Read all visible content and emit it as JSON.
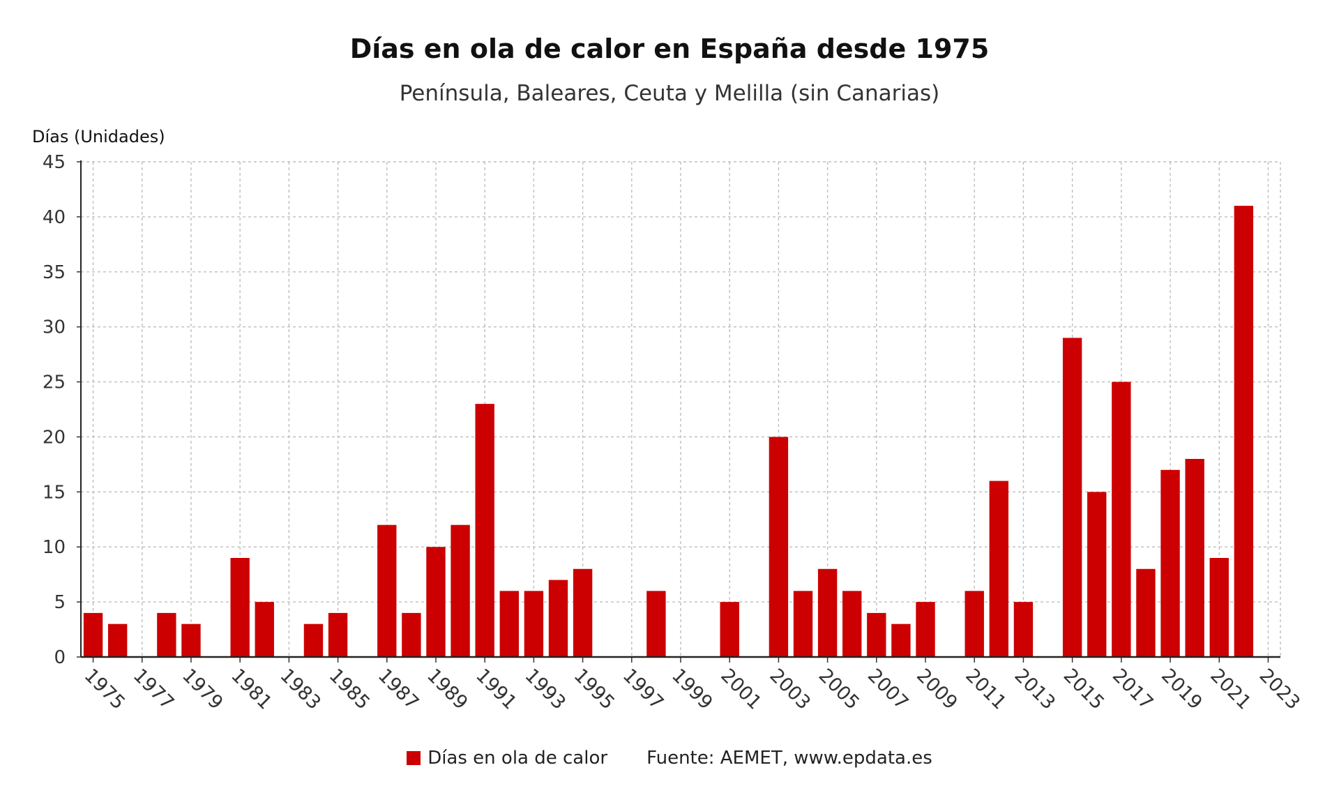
{
  "chart_data": {
    "type": "bar",
    "title": "Días en ola de calor en España desde 1975",
    "subtitle": "Península, Baleares, Ceuta y Melilla (sin Canarias)",
    "ylabel": "Días (Unidades)",
    "xlabel": "",
    "ylim": [
      0,
      45
    ],
    "yticks": [
      0,
      5,
      10,
      15,
      20,
      25,
      30,
      35,
      40,
      45
    ],
    "grid": true,
    "legend_position": "bottom-center",
    "x_tick_labels": [
      "1975",
      "1977",
      "1979",
      "1981",
      "1983",
      "1985",
      "1987",
      "1989",
      "1991",
      "1993",
      "1995",
      "1997",
      "1999",
      "2001",
      "2003",
      "2005",
      "2007",
      "2009",
      "2011",
      "2013",
      "2015",
      "2017",
      "2019",
      "2021",
      "2023"
    ],
    "bar_color": "#cc0000",
    "series": [
      {
        "name": "Días en ola de calor",
        "x": [
          1975,
          1976,
          1977,
          1978,
          1979,
          1980,
          1981,
          1982,
          1983,
          1984,
          1985,
          1986,
          1987,
          1988,
          1989,
          1990,
          1991,
          1992,
          1993,
          1994,
          1995,
          1996,
          1997,
          1998,
          1999,
          2000,
          2001,
          2002,
          2003,
          2004,
          2005,
          2006,
          2007,
          2008,
          2009,
          2010,
          2011,
          2012,
          2013,
          2014,
          2015,
          2016,
          2017,
          2018,
          2019,
          2020,
          2021,
          2022
        ],
        "values": [
          4,
          3,
          0,
          4,
          3,
          0,
          9,
          5,
          0,
          3,
          4,
          0,
          12,
          4,
          10,
          12,
          23,
          6,
          6,
          7,
          8,
          0,
          0,
          6,
          0,
          0,
          5,
          0,
          20,
          6,
          8,
          6,
          4,
          3,
          5,
          0,
          6,
          16,
          5,
          0,
          29,
          15,
          25,
          8,
          17,
          18,
          9,
          41
        ]
      }
    ]
  },
  "source_text": "Fuente: AEMET, www.epdata.es"
}
